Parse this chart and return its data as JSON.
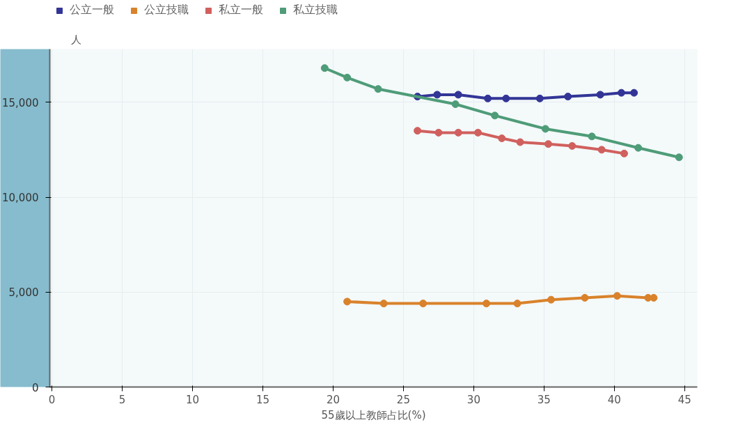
{
  "chart_data": {
    "type": "line",
    "xlabel": "55歲以上教師占比(%)",
    "ylabel": "人",
    "xlim": [
      -0.15,
      45.9
    ],
    "ylim": [
      0,
      17800
    ],
    "xticks": [
      0,
      5,
      10,
      15,
      20,
      25,
      30,
      35,
      40,
      45
    ],
    "yticks": [
      0,
      {
        "value": 5000,
        "label": "5,000"
      },
      {
        "value": 10000,
        "label": "10,000"
      },
      {
        "value": 15000,
        "label": "15,000"
      }
    ],
    "grid": true,
    "legend": "top left",
    "marker": "circle",
    "line_style": "solid",
    "series": [
      {
        "name": "公立一般",
        "color": "#323596",
        "x": [
          26.0,
          27.4,
          28.9,
          31.0,
          32.3,
          34.7,
          36.7,
          39.0,
          40.5,
          41.4
        ],
        "values": [
          15300,
          15400,
          15400,
          15200,
          15200,
          15200,
          15300,
          15400,
          15500,
          15500
        ]
      },
      {
        "name": "公立技職",
        "color": "#d9822b",
        "x": [
          21.0,
          23.6,
          26.4,
          30.9,
          33.1,
          35.5,
          37.9,
          40.2,
          42.4,
          42.8
        ],
        "values": [
          4500,
          4400,
          4400,
          4400,
          4400,
          4600,
          4700,
          4800,
          4700,
          4700
        ]
      },
      {
        "name": "私立一般",
        "color": "#d0605e",
        "x": [
          26.0,
          27.5,
          28.9,
          30.3,
          32.0,
          33.3,
          35.3,
          37.0,
          39.1,
          40.7
        ],
        "values": [
          13500,
          13400,
          13400,
          13400,
          13100,
          12900,
          12800,
          12700,
          12500,
          12300
        ]
      },
      {
        "name": "私立技職",
        "color": "#4e9c78",
        "x": [
          19.4,
          21.0,
          23.2,
          28.7,
          31.5,
          35.1,
          38.4,
          41.7,
          44.6
        ],
        "values": [
          16800,
          16300,
          15700,
          14900,
          14300,
          13600,
          13200,
          12600,
          12100
        ]
      }
    ]
  }
}
